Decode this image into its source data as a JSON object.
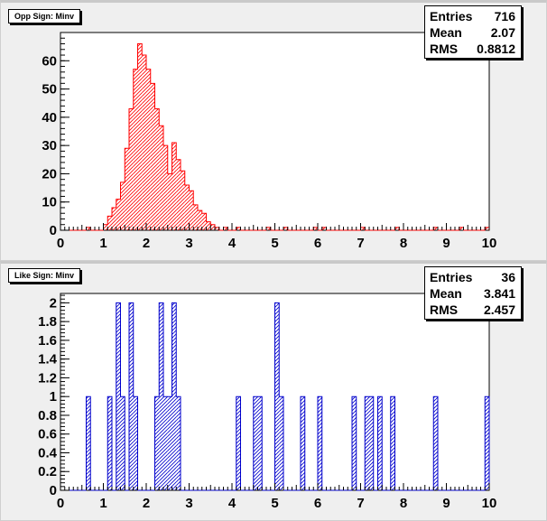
{
  "chart_data": [
    {
      "type": "histogram",
      "title": "Opp Sign: Minv",
      "color": "#ff0000",
      "fill": "hatched",
      "xlim": [
        0,
        10
      ],
      "ylim": [
        0,
        70
      ],
      "bin_width": 0.1,
      "x_ticks": [
        "0",
        "1",
        "2",
        "3",
        "4",
        "5",
        "6",
        "7",
        "8",
        "9",
        "10"
      ],
      "y_ticks": [
        "0",
        "10",
        "20",
        "30",
        "40",
        "50",
        "60"
      ],
      "stats": {
        "entries_label": "Entries",
        "entries": "716",
        "mean_label": "Mean",
        "mean": "2.07",
        "rms_label": "RMS",
        "rms": "0.8812"
      },
      "values": [
        0,
        0,
        0,
        0,
        0,
        0,
        1,
        0,
        0,
        0,
        2,
        5,
        8,
        11,
        17,
        29,
        43,
        57,
        66,
        62,
        57,
        52,
        43,
        37,
        30,
        20,
        31,
        25,
        21,
        16,
        14,
        9,
        7,
        6,
        3,
        2,
        1,
        0,
        1,
        0,
        0,
        1,
        0,
        0,
        0,
        0,
        0,
        0,
        1,
        0,
        0,
        0,
        1,
        0,
        0,
        0,
        0,
        0,
        0,
        1,
        0,
        1,
        0,
        0,
        0,
        0,
        0,
        0,
        0,
        0,
        1,
        0,
        0,
        0,
        0,
        0,
        0,
        0,
        1,
        0,
        0,
        0,
        0,
        0,
        0,
        0,
        0,
        1,
        0,
        0,
        0,
        0,
        0,
        1,
        0,
        0,
        0,
        0,
        0,
        1
      ]
    },
    {
      "type": "histogram",
      "title": "Like Sign: Minv",
      "color": "#0000cc",
      "fill": "hatched",
      "xlim": [
        0,
        10
      ],
      "ylim": [
        0,
        2.1
      ],
      "bin_width": 0.1,
      "x_ticks": [
        "0",
        "1",
        "2",
        "3",
        "4",
        "5",
        "6",
        "7",
        "8",
        "9",
        "10"
      ],
      "y_ticks": [
        "0",
        "0.2",
        "0.4",
        "0.6",
        "0.8",
        "1",
        "1.2",
        "1.4",
        "1.6",
        "1.8",
        "2"
      ],
      "stats": {
        "entries_label": "Entries",
        "entries": "36",
        "mean_label": "Mean",
        "mean": "3.841",
        "rms_label": "RMS",
        "rms": "2.457"
      },
      "values": [
        0,
        0,
        0,
        0,
        0,
        0,
        1,
        0,
        0,
        0,
        0,
        1,
        0,
        2,
        1,
        0,
        2,
        1,
        0,
        0,
        0,
        0,
        1,
        2,
        1,
        1,
        2,
        1,
        0,
        0,
        0,
        0,
        0,
        0,
        0,
        0,
        0,
        0,
        0,
        0,
        0,
        1,
        0,
        0,
        0,
        1,
        1,
        0,
        0,
        0,
        2,
        1,
        0,
        0,
        0,
        0,
        1,
        0,
        0,
        0,
        1,
        0,
        0,
        0,
        0,
        0,
        0,
        0,
        1,
        0,
        0,
        1,
        1,
        0,
        1,
        0,
        0,
        1,
        0,
        0,
        0,
        0,
        0,
        0,
        0,
        0,
        0,
        1,
        0,
        0,
        0,
        0,
        0,
        0,
        0,
        0,
        0,
        0,
        0,
        1
      ]
    }
  ]
}
